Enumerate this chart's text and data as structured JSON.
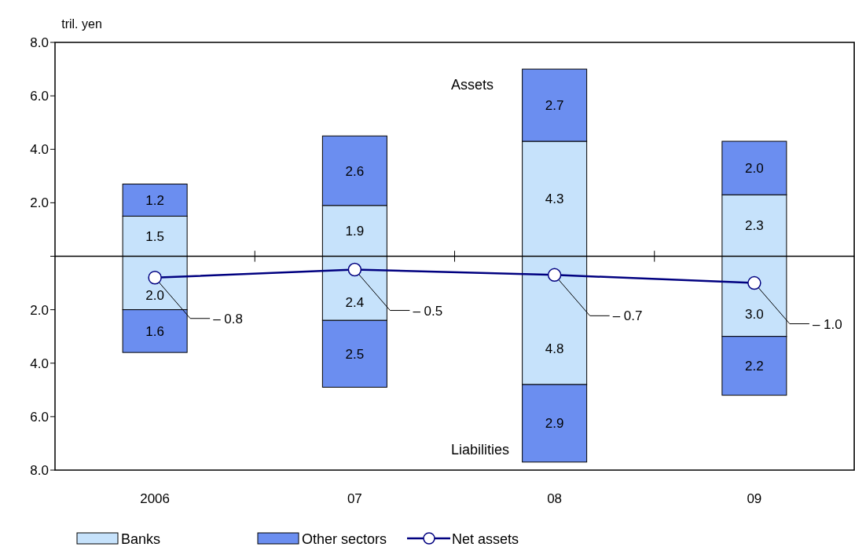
{
  "chart_data": {
    "type": "bar",
    "stacked": true,
    "categories": [
      "2006",
      "07",
      "08",
      "09"
    ],
    "ylim": [
      -8,
      8
    ],
    "yticks": [
      {
        "value": 0,
        "label": null
      },
      {
        "value": 2,
        "label": "2.0"
      },
      {
        "value": 4,
        "label": "4.0"
      },
      {
        "value": 6,
        "label": "6.0"
      },
      {
        "value": 8,
        "label": "8.0"
      }
    ],
    "y2lim": [
      8,
      -8
    ],
    "y2ticks": [
      {
        "value": 2,
        "label": "2.0"
      },
      {
        "value": 4,
        "label": "4.0"
      },
      {
        "value": 6,
        "label": "6.0"
      },
      {
        "value": 8,
        "label": "8.0"
      }
    ],
    "series": [
      {
        "name": "Banks",
        "color": "#c6e2fb",
        "values": [
          1.5,
          1.9,
          4.3,
          2.3
        ],
        "value_labels": [
          "1.5",
          "1.9",
          "4.3",
          "2.3"
        ]
      },
      {
        "name": "Other sectors",
        "color": "#6b8ef0",
        "values": [
          1.2,
          2.6,
          2.7,
          2.0
        ],
        "value_labels": [
          "1.2",
          "2.6",
          "2.7",
          "2.0"
        ]
      },
      {
        "color": "#c6e2fb",
        "axis": "y2",
        "values": [
          2.0,
          2.4,
          4.8,
          3.0
        ],
        "value_labels": [
          "2.0",
          "2.4",
          "4.8",
          "3.0"
        ]
      },
      {
        "color": "#6b8ef0",
        "axis": "y2",
        "values": [
          1.6,
          2.5,
          2.9,
          2.2
        ],
        "value_labels": [
          "1.6",
          "2.5",
          "2.9",
          "2.2"
        ]
      },
      {
        "name": "Net assets",
        "type": "line",
        "color": "#000080",
        "marker": "circle",
        "values": [
          -0.8,
          -0.5,
          -0.7,
          -1.0
        ],
        "value_labels": [
          "– 0.8",
          "– 0.5",
          "– 0.7",
          "– 1.0"
        ]
      }
    ],
    "annotations": [
      "tril. yen",
      "Assets",
      "Liabilities"
    ],
    "legend": "bottom"
  }
}
